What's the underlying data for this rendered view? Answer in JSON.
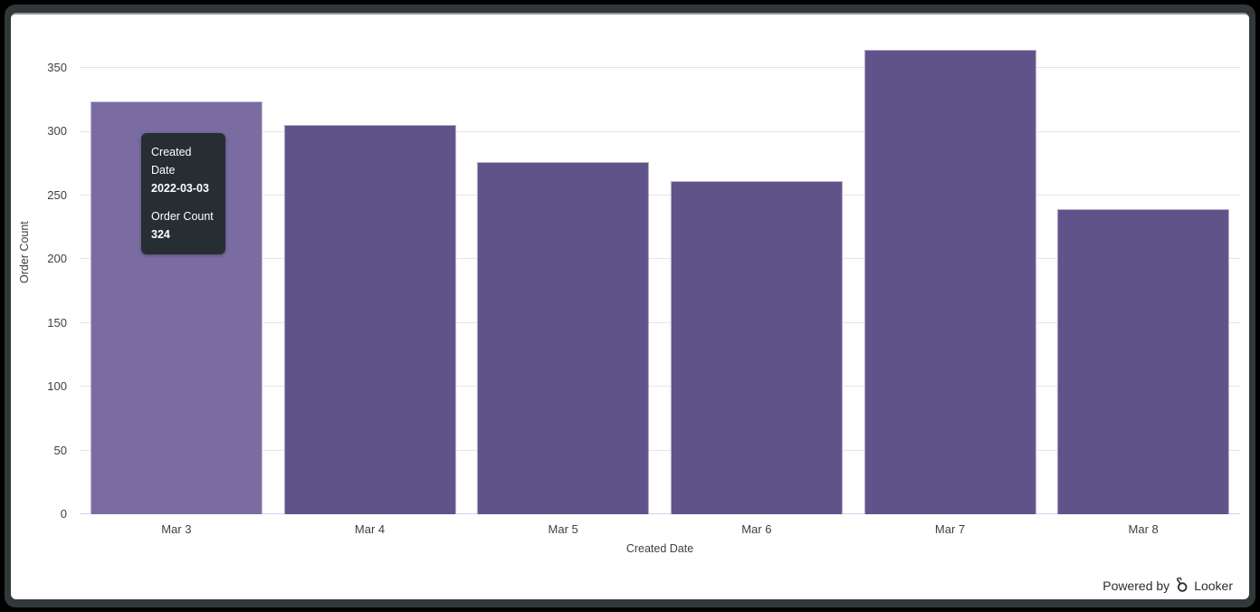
{
  "chart_data": {
    "type": "bar",
    "categories": [
      "Mar 3",
      "Mar 4",
      "Mar 5",
      "Mar 6",
      "Mar 7",
      "Mar 8"
    ],
    "values": [
      324,
      305,
      276,
      261,
      364,
      239
    ],
    "title": "",
    "xlabel": "Created Date",
    "ylabel": "Order Count",
    "y_ticks": [
      0,
      50,
      100,
      150,
      200,
      250,
      300,
      350
    ],
    "ylim": [
      0,
      382
    ],
    "grid": true,
    "legend": "none",
    "bar_color": "#5f5389",
    "bar_hover_color": "#7a6ca1",
    "hovered_index": 0
  },
  "tooltip": {
    "dimension_label": "Created Date",
    "dimension_value": "2022-03-03",
    "measure_label": "Order Count",
    "measure_value": "324",
    "bg_color": "#262d33"
  },
  "footer": {
    "powered_by": "Powered by",
    "brand": "Looker"
  }
}
